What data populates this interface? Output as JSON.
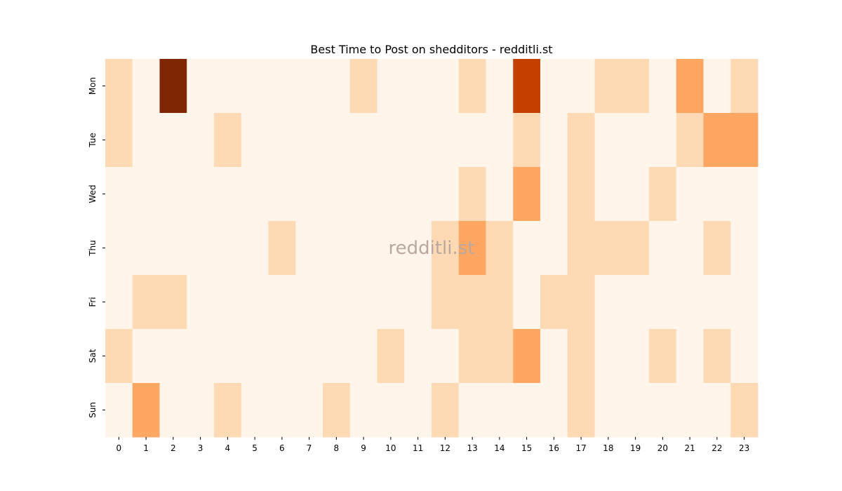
{
  "chart_data": {
    "type": "heatmap",
    "title": "Best Time to Post on shedditors - redditli.st",
    "watermark": "redditli.st",
    "xlabel": "",
    "ylabel": "",
    "x_categories": [
      "0",
      "1",
      "2",
      "3",
      "4",
      "5",
      "6",
      "7",
      "8",
      "9",
      "10",
      "11",
      "12",
      "13",
      "14",
      "15",
      "16",
      "17",
      "18",
      "19",
      "20",
      "21",
      "22",
      "23"
    ],
    "y_categories": [
      "Mon",
      "Tue",
      "Wed",
      "Thu",
      "Fri",
      "Sat",
      "Sun"
    ],
    "colormap": "Oranges",
    "colors": [
      "#fff5eb",
      "#fdd9b4",
      "#fda762",
      "#c54102",
      "#7f2704"
    ],
    "values": [
      [
        1,
        0,
        4,
        0,
        0,
        0,
        0,
        0,
        0,
        1,
        0,
        0,
        0,
        1,
        0,
        3,
        0,
        0,
        1,
        1,
        0,
        2,
        0,
        1
      ],
      [
        1,
        0,
        0,
        0,
        1,
        0,
        0,
        0,
        0,
        0,
        0,
        0,
        0,
        0,
        0,
        1,
        0,
        1,
        0,
        0,
        0,
        1,
        2,
        2
      ],
      [
        0,
        0,
        0,
        0,
        0,
        0,
        0,
        0,
        0,
        0,
        0,
        0,
        0,
        1,
        0,
        2,
        0,
        1,
        0,
        0,
        1,
        0,
        0,
        0
      ],
      [
        0,
        0,
        0,
        0,
        0,
        0,
        1,
        0,
        0,
        0,
        0,
        0,
        1,
        2,
        1,
        0,
        0,
        1,
        1,
        1,
        0,
        0,
        1,
        0
      ],
      [
        0,
        1,
        1,
        0,
        0,
        0,
        0,
        0,
        0,
        0,
        0,
        0,
        1,
        1,
        1,
        0,
        1,
        1,
        0,
        0,
        0,
        0,
        0,
        0
      ],
      [
        1,
        0,
        0,
        0,
        0,
        0,
        0,
        0,
        0,
        0,
        1,
        0,
        0,
        1,
        1,
        2,
        0,
        1,
        0,
        0,
        1,
        0,
        1,
        0
      ],
      [
        0,
        2,
        0,
        0,
        1,
        0,
        0,
        0,
        1,
        0,
        0,
        0,
        1,
        0,
        0,
        0,
        0,
        1,
        0,
        0,
        0,
        0,
        0,
        1
      ]
    ],
    "grid": false,
    "colorbar": false
  }
}
